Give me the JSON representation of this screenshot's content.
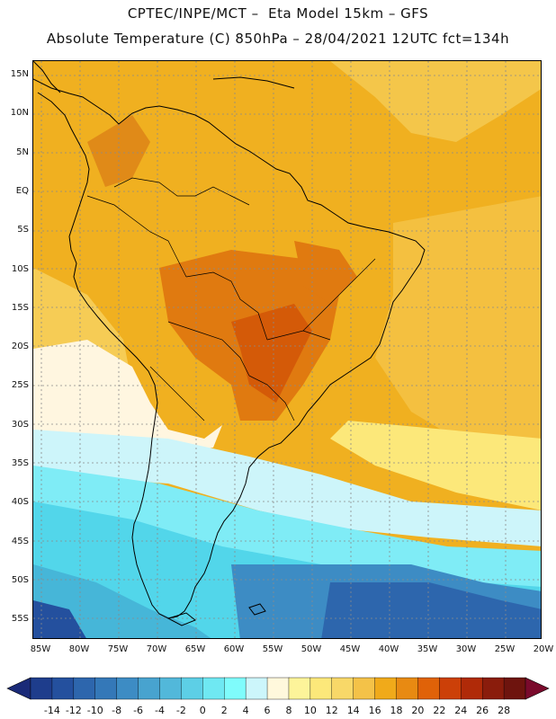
{
  "header": {
    "line1": "CPTEC/INPE/MCT –  Eta Model 15km – GFS",
    "line2": "Absolute Temperature (C) 850hPa – 28/04/2021 12UTC fct=134h"
  },
  "axes": {
    "lat_labels": [
      "15N",
      "10N",
      "5N",
      "EQ",
      "5S",
      "10S",
      "15S",
      "20S",
      "25S",
      "30S",
      "35S",
      "40S",
      "45S",
      "50S",
      "55S"
    ],
    "lon_labels": [
      "85W",
      "80W",
      "75W",
      "70W",
      "65W",
      "60W",
      "55W",
      "50W",
      "45W",
      "40W",
      "35W",
      "30W",
      "25W",
      "20W"
    ]
  },
  "colorbar": {
    "labels": [
      "-14",
      "-12",
      "-10",
      "-8",
      "-6",
      "-4",
      "-2",
      "0",
      "2",
      "4",
      "6",
      "8",
      "10",
      "12",
      "14",
      "16",
      "18",
      "20",
      "22",
      "24",
      "26",
      "28"
    ],
    "colors": [
      "#1e3d8c",
      "#24509e",
      "#2d66ad",
      "#3478b8",
      "#3d8cc4",
      "#48a3cf",
      "#52b8da",
      "#5dcfe6",
      "#6fe8f2",
      "#7ffcfc",
      "#ccf6fb",
      "#fff8dc",
      "#fdf49a",
      "#fce87a",
      "#f8d868",
      "#f4c248",
      "#f0aa1a",
      "#e88a12",
      "#e06208",
      "#cc4008",
      "#b02a08",
      "#8a1c0c",
      "#6e140e"
    ],
    "under_color": "#1a2a78",
    "over_color": "#7a0a2c"
  },
  "map": {
    "ocean_color": "#f0b020",
    "land_color": "#eca624",
    "hot_color": "#dc6410",
    "very_hot_color": "#d45008",
    "cool_color": "#fff6e0",
    "cold_colors": [
      "#cdf5fa",
      "#7fecf6",
      "#52d6ea",
      "#46b6d8",
      "#3d8cc4",
      "#2d66ad",
      "#24509e"
    ]
  }
}
